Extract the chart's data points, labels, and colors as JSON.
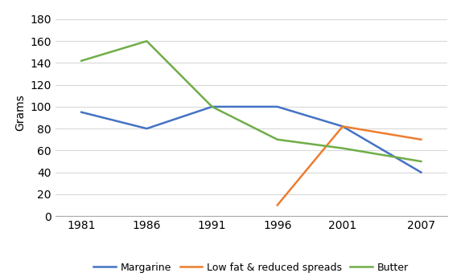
{
  "years": [
    1981,
    1986,
    1991,
    1996,
    2001,
    2007
  ],
  "margarine": [
    95,
    80,
    100,
    100,
    82,
    40
  ],
  "low_fat": [
    null,
    null,
    null,
    10,
    82,
    70
  ],
  "butter": [
    142,
    160,
    100,
    70,
    62,
    50
  ],
  "margarine_color": "#4472C4",
  "low_fat_color": "#ED7D31",
  "butter_color": "#70AD47",
  "ylabel": "Grams",
  "ylim": [
    0,
    190
  ],
  "yticks": [
    0,
    20,
    40,
    60,
    80,
    100,
    120,
    140,
    160,
    180
  ],
  "xtick_labels": [
    "1981",
    "1986",
    "1991",
    "1996",
    "2001",
    "2007"
  ],
  "legend_labels": [
    "Margarine",
    "Low fat & reduced spreads",
    "Butter"
  ],
  "background_color": "#ffffff",
  "grid_color": "#d9d9d9",
  "tick_fontsize": 10,
  "label_fontsize": 10,
  "legend_fontsize": 9,
  "linewidth": 1.8
}
